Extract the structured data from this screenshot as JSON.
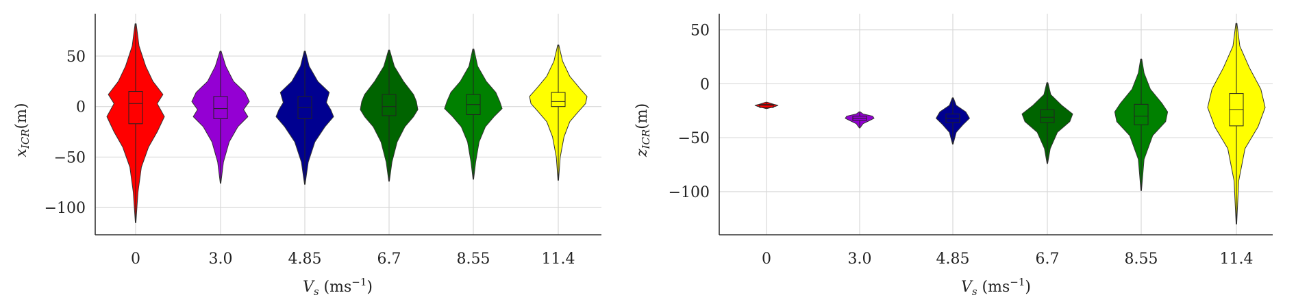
{
  "chart_data": [
    {
      "type": "violin",
      "categories": [
        "0",
        "3.0",
        "4.85",
        "6.7",
        "8.55",
        "11.4"
      ],
      "xlabel": "V_s (ms⁻¹)",
      "xlabel_main": "V",
      "xlabel_sub": "s",
      "xlabel_unit": " (ms",
      "xlabel_sup": "−1",
      "xlabel_close": ")",
      "ylabel": "x_ICR(m)",
      "ylabel_main": "x",
      "ylabel_sub": "ICR",
      "ylabel_unit": "(m)",
      "ylim": [
        -127,
        92
      ],
      "yticks": [
        -100,
        -50,
        0,
        50
      ],
      "ytick_labels": [
        "−100",
        "−50",
        "0",
        "50"
      ],
      "grid": true,
      "series": [
        {
          "category": "0",
          "color": "#ff0000",
          "min": -115,
          "max": 82,
          "q1": -17,
          "median": 3,
          "q3": 15,
          "profile": [
            [
              82,
              0.02
            ],
            [
              60,
              0.12
            ],
            [
              40,
              0.35
            ],
            [
              25,
              0.6
            ],
            [
              12,
              0.95
            ],
            [
              3,
              0.75
            ],
            [
              -10,
              1.0
            ],
            [
              -25,
              0.75
            ],
            [
              -40,
              0.45
            ],
            [
              -60,
              0.2
            ],
            [
              -85,
              0.08
            ],
            [
              -115,
              0.01
            ]
          ]
        },
        {
          "category": "3.0",
          "color": "#9400d3",
          "min": -76,
          "max": 55,
          "q1": -12,
          "median": -2,
          "q3": 10,
          "profile": [
            [
              55,
              0.02
            ],
            [
              40,
              0.18
            ],
            [
              25,
              0.45
            ],
            [
              14,
              0.85
            ],
            [
              5,
              1.0
            ],
            [
              -3,
              0.8
            ],
            [
              -10,
              0.95
            ],
            [
              -20,
              0.6
            ],
            [
              -35,
              0.3
            ],
            [
              -55,
              0.1
            ],
            [
              -76,
              0.01
            ]
          ]
        },
        {
          "category": "4.85",
          "color": "#000090",
          "min": -77,
          "max": 55,
          "q1": -12,
          "median": -1,
          "q3": 10,
          "profile": [
            [
              55,
              0.02
            ],
            [
              40,
              0.15
            ],
            [
              25,
              0.45
            ],
            [
              14,
              0.85
            ],
            [
              4,
              0.75
            ],
            [
              -3,
              0.9
            ],
            [
              -10,
              1.0
            ],
            [
              -20,
              0.7
            ],
            [
              -35,
              0.35
            ],
            [
              -55,
              0.12
            ],
            [
              -77,
              0.01
            ]
          ]
        },
        {
          "category": "6.7",
          "color": "#006400",
          "min": -74,
          "max": 56,
          "q1": -9,
          "median": 0,
          "q3": 12,
          "profile": [
            [
              56,
              0.02
            ],
            [
              40,
              0.18
            ],
            [
              25,
              0.5
            ],
            [
              12,
              0.85
            ],
            [
              5,
              0.95
            ],
            [
              -3,
              1.0
            ],
            [
              -10,
              0.85
            ],
            [
              -20,
              0.55
            ],
            [
              -35,
              0.28
            ],
            [
              -55,
              0.1
            ],
            [
              -74,
              0.01
            ]
          ]
        },
        {
          "category": "8.55",
          "color": "#008000",
          "min": -72,
          "max": 57,
          "q1": -8,
          "median": 2,
          "q3": 12,
          "profile": [
            [
              57,
              0.02
            ],
            [
              40,
              0.15
            ],
            [
              25,
              0.45
            ],
            [
              14,
              0.78
            ],
            [
              5,
              0.92
            ],
            [
              -2,
              1.0
            ],
            [
              -10,
              0.72
            ],
            [
              -20,
              0.42
            ],
            [
              -35,
              0.2
            ],
            [
              -55,
              0.08
            ],
            [
              -72,
              0.01
            ]
          ]
        },
        {
          "category": "11.4",
          "color": "#ffff00",
          "min": -73,
          "max": 61,
          "q1": 0,
          "median": 5,
          "q3": 14,
          "profile": [
            [
              61,
              0.02
            ],
            [
              45,
              0.15
            ],
            [
              30,
              0.4
            ],
            [
              18,
              0.75
            ],
            [
              10,
              1.0
            ],
            [
              3,
              0.95
            ],
            [
              -5,
              0.7
            ],
            [
              -15,
              0.4
            ],
            [
              -30,
              0.2
            ],
            [
              -50,
              0.07
            ],
            [
              -73,
              0.01
            ]
          ]
        }
      ]
    },
    {
      "type": "violin",
      "categories": [
        "0",
        "3.0",
        "4.85",
        "6.7",
        "8.55",
        "11.4"
      ],
      "xlabel": "V_s (ms⁻¹)",
      "xlabel_main": "V",
      "xlabel_sub": "s",
      "xlabel_unit": " (ms",
      "xlabel_sup": "−1",
      "xlabel_close": ")",
      "ylabel": "z_ICR(m)",
      "ylabel_main": "z",
      "ylabel_sub": "ICR",
      "ylabel_unit": "(m)",
      "ylim": [
        -140,
        65
      ],
      "yticks": [
        -100,
        -50,
        0,
        50
      ],
      "ytick_labels": [
        "−100",
        "−50",
        "0",
        "50"
      ],
      "grid": true,
      "series": [
        {
          "category": "0",
          "color": "#ff0000",
          "min": -23,
          "max": -17,
          "q1": -22,
          "median": -20,
          "q3": -19,
          "profile": [
            [
              -17,
              0.02
            ],
            [
              -19,
              0.25
            ],
            [
              -20,
              0.4
            ],
            [
              -21,
              0.3
            ],
            [
              -23,
              0.02
            ]
          ]
        },
        {
          "category": "3.0",
          "color": "#9400d3",
          "min": -41,
          "max": -26,
          "q1": -34,
          "median": -32,
          "q3": -30,
          "profile": [
            [
              -26,
              0.02
            ],
            [
              -28,
              0.12
            ],
            [
              -30,
              0.45
            ],
            [
              -32,
              0.5
            ],
            [
              -34,
              0.35
            ],
            [
              -37,
              0.12
            ],
            [
              -41,
              0.01
            ]
          ]
        },
        {
          "category": "4.85",
          "color": "#000090",
          "min": -56,
          "max": -13,
          "q1": -36,
          "median": -32,
          "q3": -28,
          "profile": [
            [
              -13,
              0.02
            ],
            [
              -20,
              0.12
            ],
            [
              -26,
              0.45
            ],
            [
              -32,
              0.58
            ],
            [
              -38,
              0.35
            ],
            [
              -45,
              0.12
            ],
            [
              -56,
              0.01
            ]
          ]
        },
        {
          "category": "6.7",
          "color": "#006400",
          "min": -74,
          "max": 1,
          "q1": -36,
          "median": -31,
          "q3": -24,
          "profile": [
            [
              1,
              0.02
            ],
            [
              -10,
              0.12
            ],
            [
              -20,
              0.5
            ],
            [
              -28,
              0.88
            ],
            [
              -35,
              0.78
            ],
            [
              -45,
              0.35
            ],
            [
              -60,
              0.1
            ],
            [
              -74,
              0.01
            ]
          ]
        },
        {
          "category": "8.55",
          "color": "#008000",
          "min": -99,
          "max": 23,
          "q1": -38,
          "median": -30,
          "q3": -19,
          "profile": [
            [
              23,
              0.02
            ],
            [
              10,
              0.1
            ],
            [
              -5,
              0.32
            ],
            [
              -18,
              0.72
            ],
            [
              -26,
              0.92
            ],
            [
              -35,
              0.85
            ],
            [
              -48,
              0.4
            ],
            [
              -70,
              0.1
            ],
            [
              -99,
              0.01
            ]
          ]
        },
        {
          "category": "11.4",
          "color": "#ffff00",
          "min": -130,
          "max": 56,
          "q1": -39,
          "median": -24,
          "q3": -9,
          "profile": [
            [
              56,
              0.02
            ],
            [
              35,
              0.12
            ],
            [
              15,
              0.45
            ],
            [
              -5,
              0.85
            ],
            [
              -22,
              1.0
            ],
            [
              -40,
              0.75
            ],
            [
              -60,
              0.3
            ],
            [
              -90,
              0.08
            ],
            [
              -130,
              0.01
            ]
          ]
        }
      ]
    }
  ]
}
